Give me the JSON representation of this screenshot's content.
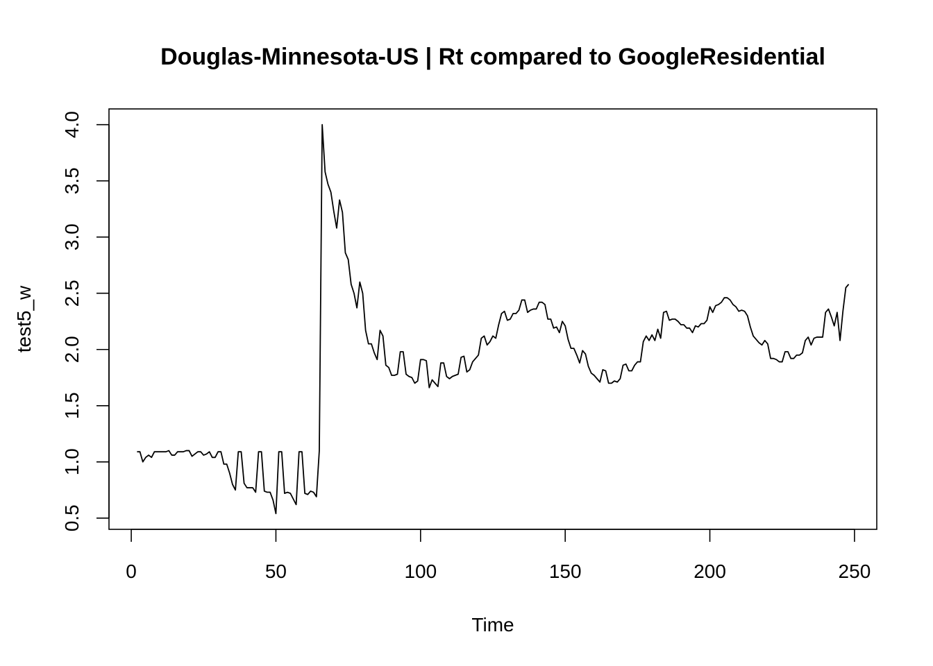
{
  "chart_data": {
    "type": "line",
    "title": "Douglas-Minnesota-US | Rt compared to GoogleResidential",
    "xlabel": "Time",
    "ylabel": "test5_w",
    "xlim": [
      -7.7,
      257.7
    ],
    "ylim": [
      0.4,
      4.14
    ],
    "x_ticks": [
      0,
      50,
      100,
      150,
      200,
      250
    ],
    "y_ticks": [
      0.5,
      1.0,
      1.5,
      2.0,
      2.5,
      3.0,
      3.5,
      4.0
    ],
    "x_tick_labels": [
      "0",
      "50",
      "100",
      "150",
      "200",
      "250"
    ],
    "y_tick_labels": [
      "0.5",
      "1.0",
      "1.5",
      "2.0",
      "2.5",
      "3.0",
      "3.5",
      "4.0"
    ],
    "grid": false,
    "series": [
      {
        "color": "#000000",
        "points": [
          [
            2,
            1.09
          ],
          [
            3,
            1.09
          ],
          [
            4,
            1.0
          ],
          [
            5,
            1.04
          ],
          [
            6,
            1.06
          ],
          [
            7,
            1.04
          ],
          [
            8,
            1.09
          ],
          [
            9,
            1.09
          ],
          [
            10,
            1.09
          ],
          [
            11,
            1.09
          ],
          [
            12,
            1.09
          ],
          [
            13,
            1.1
          ],
          [
            14,
            1.06
          ],
          [
            15,
            1.06
          ],
          [
            16,
            1.09
          ],
          [
            17,
            1.09
          ],
          [
            18,
            1.09
          ],
          [
            19,
            1.1
          ],
          [
            20,
            1.1
          ],
          [
            21,
            1.05
          ],
          [
            22,
            1.07
          ],
          [
            23,
            1.09
          ],
          [
            24,
            1.09
          ],
          [
            25,
            1.06
          ],
          [
            26,
            1.07
          ],
          [
            27,
            1.09
          ],
          [
            28,
            1.04
          ],
          [
            29,
            1.04
          ],
          [
            30,
            1.09
          ],
          [
            31,
            1.09
          ],
          [
            32,
            0.98
          ],
          [
            33,
            0.98
          ],
          [
            34,
            0.9
          ],
          [
            35,
            0.8
          ],
          [
            36,
            0.75
          ],
          [
            37,
            1.09
          ],
          [
            38,
            1.09
          ],
          [
            39,
            0.81
          ],
          [
            40,
            0.77
          ],
          [
            41,
            0.77
          ],
          [
            42,
            0.77
          ],
          [
            43,
            0.73
          ],
          [
            44,
            1.09
          ],
          [
            45,
            1.09
          ],
          [
            46,
            0.74
          ],
          [
            47,
            0.73
          ],
          [
            48,
            0.73
          ],
          [
            49,
            0.66
          ],
          [
            50,
            0.54
          ],
          [
            51,
            1.09
          ],
          [
            52,
            1.09
          ],
          [
            53,
            0.72
          ],
          [
            54,
            0.73
          ],
          [
            55,
            0.72
          ],
          [
            56,
            0.67
          ],
          [
            57,
            0.62
          ],
          [
            58,
            1.09
          ],
          [
            59,
            1.09
          ],
          [
            60,
            0.72
          ],
          [
            61,
            0.71
          ],
          [
            62,
            0.74
          ],
          [
            63,
            0.73
          ],
          [
            64,
            0.69
          ],
          [
            65,
            1.1
          ],
          [
            66,
            4.0
          ],
          [
            67,
            3.58
          ],
          [
            68,
            3.47
          ],
          [
            69,
            3.4
          ],
          [
            70,
            3.23
          ],
          [
            71,
            3.08
          ],
          [
            72,
            3.33
          ],
          [
            73,
            3.22
          ],
          [
            74,
            2.86
          ],
          [
            75,
            2.8
          ],
          [
            76,
            2.58
          ],
          [
            77,
            2.5
          ],
          [
            78,
            2.37
          ],
          [
            79,
            2.6
          ],
          [
            80,
            2.5
          ],
          [
            81,
            2.17
          ],
          [
            82,
            2.05
          ],
          [
            83,
            2.05
          ],
          [
            84,
            1.97
          ],
          [
            85,
            1.91
          ],
          [
            86,
            2.17
          ],
          [
            87,
            2.12
          ],
          [
            88,
            1.86
          ],
          [
            89,
            1.84
          ],
          [
            90,
            1.77
          ],
          [
            91,
            1.77
          ],
          [
            92,
            1.78
          ],
          [
            93,
            1.98
          ],
          [
            94,
            1.98
          ],
          [
            95,
            1.78
          ],
          [
            96,
            1.76
          ],
          [
            97,
            1.75
          ],
          [
            98,
            1.7
          ],
          [
            99,
            1.72
          ],
          [
            100,
            1.91
          ],
          [
            101,
            1.91
          ],
          [
            102,
            1.9
          ],
          [
            103,
            1.66
          ],
          [
            104,
            1.73
          ],
          [
            105,
            1.7
          ],
          [
            106,
            1.67
          ],
          [
            107,
            1.88
          ],
          [
            108,
            1.88
          ],
          [
            109,
            1.76
          ],
          [
            110,
            1.74
          ],
          [
            111,
            1.76
          ],
          [
            112,
            1.77
          ],
          [
            113,
            1.78
          ],
          [
            114,
            1.93
          ],
          [
            115,
            1.94
          ],
          [
            116,
            1.8
          ],
          [
            117,
            1.82
          ],
          [
            118,
            1.89
          ],
          [
            119,
            1.92
          ],
          [
            120,
            1.95
          ],
          [
            121,
            2.1
          ],
          [
            122,
            2.12
          ],
          [
            123,
            2.04
          ],
          [
            124,
            2.07
          ],
          [
            125,
            2.12
          ],
          [
            126,
            2.1
          ],
          [
            127,
            2.22
          ],
          [
            128,
            2.32
          ],
          [
            129,
            2.34
          ],
          [
            130,
            2.26
          ],
          [
            131,
            2.27
          ],
          [
            132,
            2.32
          ],
          [
            133,
            2.32
          ],
          [
            134,
            2.35
          ],
          [
            135,
            2.44
          ],
          [
            136,
            2.44
          ],
          [
            137,
            2.33
          ],
          [
            138,
            2.35
          ],
          [
            139,
            2.36
          ],
          [
            140,
            2.36
          ],
          [
            141,
            2.42
          ],
          [
            142,
            2.42
          ],
          [
            143,
            2.4
          ],
          [
            144,
            2.27
          ],
          [
            145,
            2.27
          ],
          [
            146,
            2.19
          ],
          [
            147,
            2.2
          ],
          [
            148,
            2.15
          ],
          [
            149,
            2.25
          ],
          [
            150,
            2.21
          ],
          [
            151,
            2.09
          ],
          [
            152,
            2.01
          ],
          [
            153,
            2.01
          ],
          [
            154,
            1.95
          ],
          [
            155,
            1.88
          ],
          [
            156,
            1.99
          ],
          [
            157,
            1.96
          ],
          [
            158,
            1.85
          ],
          [
            159,
            1.79
          ],
          [
            160,
            1.77
          ],
          [
            161,
            1.74
          ],
          [
            162,
            1.71
          ],
          [
            163,
            1.82
          ],
          [
            164,
            1.81
          ],
          [
            165,
            1.7
          ],
          [
            166,
            1.7
          ],
          [
            167,
            1.72
          ],
          [
            168,
            1.71
          ],
          [
            169,
            1.74
          ],
          [
            170,
            1.86
          ],
          [
            171,
            1.87
          ],
          [
            172,
            1.81
          ],
          [
            173,
            1.81
          ],
          [
            174,
            1.86
          ],
          [
            175,
            1.89
          ],
          [
            176,
            1.89
          ],
          [
            177,
            2.07
          ],
          [
            178,
            2.12
          ],
          [
            179,
            2.08
          ],
          [
            180,
            2.13
          ],
          [
            181,
            2.08
          ],
          [
            182,
            2.18
          ],
          [
            183,
            2.1
          ],
          [
            184,
            2.33
          ],
          [
            185,
            2.34
          ],
          [
            186,
            2.26
          ],
          [
            187,
            2.27
          ],
          [
            188,
            2.27
          ],
          [
            189,
            2.25
          ],
          [
            190,
            2.22
          ],
          [
            191,
            2.22
          ],
          [
            192,
            2.19
          ],
          [
            193,
            2.19
          ],
          [
            194,
            2.15
          ],
          [
            195,
            2.21
          ],
          [
            196,
            2.2
          ],
          [
            197,
            2.23
          ],
          [
            198,
            2.23
          ],
          [
            199,
            2.26
          ],
          [
            200,
            2.38
          ],
          [
            201,
            2.33
          ],
          [
            202,
            2.39
          ],
          [
            203,
            2.4
          ],
          [
            204,
            2.42
          ],
          [
            205,
            2.46
          ],
          [
            206,
            2.46
          ],
          [
            207,
            2.44
          ],
          [
            208,
            2.4
          ],
          [
            209,
            2.38
          ],
          [
            210,
            2.34
          ],
          [
            211,
            2.35
          ],
          [
            212,
            2.34
          ],
          [
            213,
            2.3
          ],
          [
            214,
            2.2
          ],
          [
            215,
            2.12
          ],
          [
            216,
            2.09
          ],
          [
            217,
            2.06
          ],
          [
            218,
            2.04
          ],
          [
            219,
            2.08
          ],
          [
            220,
            2.05
          ],
          [
            221,
            1.92
          ],
          [
            222,
            1.92
          ],
          [
            223,
            1.91
          ],
          [
            224,
            1.89
          ],
          [
            225,
            1.89
          ],
          [
            226,
            1.98
          ],
          [
            227,
            1.98
          ],
          [
            228,
            1.92
          ],
          [
            229,
            1.92
          ],
          [
            230,
            1.95
          ],
          [
            231,
            1.95
          ],
          [
            232,
            1.97
          ],
          [
            233,
            2.08
          ],
          [
            234,
            2.11
          ],
          [
            235,
            2.04
          ],
          [
            236,
            2.1
          ],
          [
            237,
            2.11
          ],
          [
            238,
            2.11
          ],
          [
            239,
            2.11
          ],
          [
            240,
            2.33
          ],
          [
            241,
            2.36
          ],
          [
            242,
            2.29
          ],
          [
            243,
            2.21
          ],
          [
            244,
            2.33
          ],
          [
            245,
            2.08
          ],
          [
            246,
            2.34
          ],
          [
            247,
            2.55
          ],
          [
            248,
            2.58
          ]
        ]
      }
    ]
  }
}
